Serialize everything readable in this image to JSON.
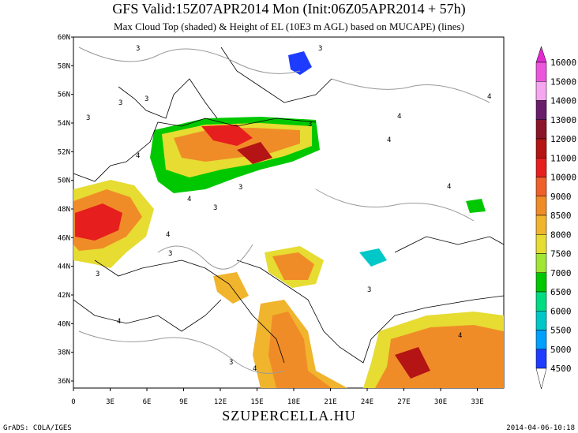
{
  "header": {
    "title": "GFS Valid:15Z07APR2014 Mon (Init:06Z05APR2014 + 57h)",
    "subtitle": "Max Cloud Top (shaded) & Height of EL (10E3 m AGL) based on MUCAPE) (lines)"
  },
  "map": {
    "lat_labels": [
      "36N",
      "38N",
      "40N",
      "42N",
      "44N",
      "46N",
      "48N",
      "50N",
      "52N",
      "54N",
      "56N",
      "58N",
      "60N"
    ],
    "lon_labels": [
      "0",
      "3E",
      "6E",
      "9E",
      "12E",
      "15E",
      "18E",
      "21E",
      "24E",
      "27E",
      "30E",
      "33E"
    ],
    "contour_labels": [
      "3",
      "3",
      "3",
      "3",
      "4",
      "4",
      "3",
      "3",
      "4",
      "4",
      "3",
      "4",
      "3",
      "4",
      "4",
      "3",
      "3",
      "4",
      "4",
      "3",
      "3",
      "4"
    ]
  },
  "colorbar": {
    "levels": [
      "16000",
      "15000",
      "14000",
      "13000",
      "12000",
      "11000",
      "10000",
      "9000",
      "8500",
      "8000",
      "7500",
      "7000",
      "6500",
      "6000",
      "5500",
      "5000",
      "4500"
    ],
    "colors": [
      "#e12bd0",
      "#ee55dd",
      "#f7a6f0",
      "#6a1e6a",
      "#8c1428",
      "#b41414",
      "#e61e1e",
      "#f0602a",
      "#f08c28",
      "#f0b42d",
      "#e6dc32",
      "#a0e632",
      "#00c800",
      "#00dc82",
      "#00c8c8",
      "#00a0ff",
      "#1e3cff",
      "#ffffff"
    ]
  },
  "footer": {
    "left": "GrADS: COLA/IGES",
    "center": "SZUPERCELLA.HU",
    "right": "2014-04-06-10:18"
  }
}
